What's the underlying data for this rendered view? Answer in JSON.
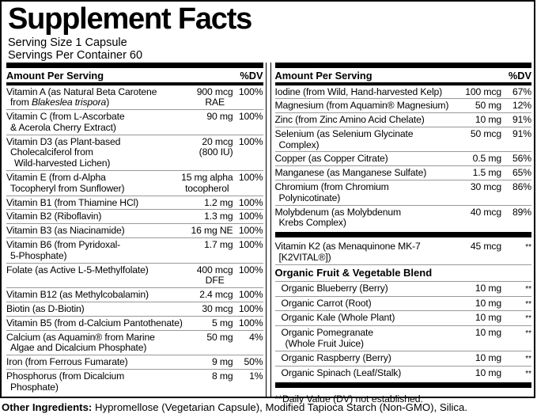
{
  "colors": {
    "background": "#ffffff",
    "text": "#000000",
    "separator": "#999999",
    "section_bar": "#000000"
  },
  "label": {
    "title": "Supplement Facts",
    "serving_size": "Serving Size 1 Capsule",
    "servings_per_container": "Servings Per Container 60",
    "columns_header": {
      "amount": "Amount Per Serving",
      "dv": "%DV"
    },
    "left_rows": [
      {
        "name": [
          "Vitamin A (as Natural Beta Carotene",
          {
            "pre": "from ",
            "italic": "Blakeslea trispora",
            "post": ")"
          }
        ],
        "amount": [
          "900 mcg",
          "RAE"
        ],
        "dv": "100%"
      },
      {
        "name": [
          "Vitamin C (from L-Ascorbate",
          "& Acerola Cherry Extract)"
        ],
        "amount": [
          "90 mg"
        ],
        "dv": "100%"
      },
      {
        "name": [
          "Vitamin D3 (as Plant-based",
          "Cholecalciferol from",
          "Wild-harvested Lichen)"
        ],
        "amount": [
          "20 mcg",
          "(800 IU)"
        ],
        "dv": "100%"
      },
      {
        "name": [
          "Vitamin E (from d-Alpha",
          "Tocopheryl from Sunflower)"
        ],
        "amount": [
          "15 mg alpha",
          "tocopherol"
        ],
        "dv": "100%"
      },
      {
        "name": [
          "Vitamin B1 (from Thiamine HCl)"
        ],
        "amount": [
          "1.2 mg"
        ],
        "dv": "100%"
      },
      {
        "name": [
          "Vitamin B2 (Riboflavin)"
        ],
        "amount": [
          "1.3 mg"
        ],
        "dv": "100%"
      },
      {
        "name": [
          "Vitamin B3 (as Niacinamide)"
        ],
        "amount": [
          "16 mg NE"
        ],
        "dv": "100%"
      },
      {
        "name": [
          "Vitamin B6 (from Pyridoxal-",
          "5-Phosphate)"
        ],
        "amount": [
          "1.7 mg"
        ],
        "dv": "100%"
      },
      {
        "name": [
          "Folate (as Active L-5-Methylfolate)"
        ],
        "amount": [
          "400 mcg",
          "DFE"
        ],
        "dv": "100%"
      },
      {
        "name": [
          "Vitamin B12 (as Methylcobalamin)"
        ],
        "amount": [
          "2.4 mcg"
        ],
        "dv": "100%"
      },
      {
        "name": [
          "Biotin (as D-Biotin)"
        ],
        "amount": [
          "30 mcg"
        ],
        "dv": "100%"
      },
      {
        "name": [
          "Vitamin B5 (from d-Calcium Pantothenate)"
        ],
        "amount": [
          "5 mg"
        ],
        "dv": "100%"
      },
      {
        "name": [
          "Calcium (as Aquamin® from Marine",
          "Algae and Dicalcium Phosphate)"
        ],
        "amount": [
          "50 mg"
        ],
        "dv": "4%"
      },
      {
        "name": [
          "Iron (from Ferrous Fumarate)"
        ],
        "amount": [
          "9 mg"
        ],
        "dv": "50%"
      },
      {
        "name": [
          "Phosphorus (from Dicalcium",
          "Phosphate)"
        ],
        "amount": [
          "8 mg"
        ],
        "dv": "1%"
      }
    ],
    "right": {
      "mineral_rows": [
        {
          "name": [
            "Iodine (from Wild, Hand-harvested Kelp)"
          ],
          "amount": [
            "100 mcg"
          ],
          "dv": "67%"
        },
        {
          "name": [
            "Magnesium (from Aquamin® Magnesium)"
          ],
          "amount": [
            "50 mg"
          ],
          "dv": "12%"
        },
        {
          "name": [
            "Zinc (from Zinc Amino Acid Chelate)"
          ],
          "amount": [
            "10 mg"
          ],
          "dv": "91%"
        },
        {
          "name": [
            "Selenium (as Selenium Glycinate",
            "Complex)"
          ],
          "amount": [
            "50 mcg"
          ],
          "dv": "91%"
        },
        {
          "name": [
            "Copper (as Copper Citrate)"
          ],
          "amount": [
            "0.5 mg"
          ],
          "dv": "56%"
        },
        {
          "name": [
            "Manganese (as Manganese Sulfate)"
          ],
          "amount": [
            "1.5 mg"
          ],
          "dv": "65%"
        },
        {
          "name": [
            "Chromium (from Chromium",
            "Polynicotinate)"
          ],
          "amount": [
            "30 mcg"
          ],
          "dv": "86%"
        },
        {
          "name": [
            "Molybdenum (as Molybdenum",
            "Krebs Complex)"
          ],
          "amount": [
            "40 mcg"
          ],
          "dv": "89%"
        }
      ],
      "k2_rows": [
        {
          "name": [
            "Vitamin K2 (as Menaquinone MK-7",
            "[K2VITAL®])"
          ],
          "amount": [
            "45 mcg"
          ],
          "dv": "**"
        }
      ],
      "blend_title": "Organic Fruit & Vegetable Blend",
      "blend_rows": [
        {
          "name": [
            "Organic Blueberry (Berry)"
          ],
          "amount": [
            "10 mg"
          ],
          "dv": "**"
        },
        {
          "name": [
            "Organic Carrot (Root)"
          ],
          "amount": [
            "10 mg"
          ],
          "dv": "**"
        },
        {
          "name": [
            "Organic Kale (Whole Plant)"
          ],
          "amount": [
            "10 mg"
          ],
          "dv": "**"
        },
        {
          "name": [
            "Organic Pomegranate",
            "(Whole Fruit Juice)"
          ],
          "amount": [
            "10 mg"
          ],
          "dv": "**"
        },
        {
          "name": [
            "Organic Raspberry (Berry)"
          ],
          "amount": [
            "10 mg"
          ],
          "dv": "**"
        },
        {
          "name": [
            "Organic Spinach (Leaf/Stalk)"
          ],
          "amount": [
            "10 mg"
          ],
          "dv": "**"
        }
      ],
      "footnote": "**Daily Value (DV) not established."
    },
    "other_ingredients": {
      "label": "Other Ingredients:",
      "text": " Hypromellose (Vegetarian Capsule), Modified Tapioca Starch (Non-GMO), Silica."
    }
  }
}
